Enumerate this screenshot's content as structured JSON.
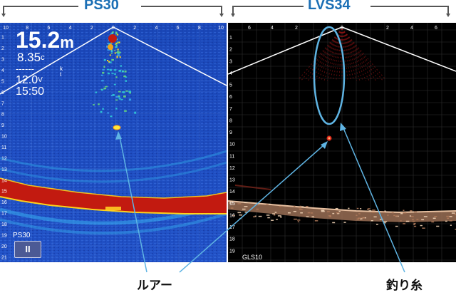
{
  "header": {
    "left_title": "PS30",
    "right_title": "LVS34"
  },
  "left_panel": {
    "depth_value": "15.2",
    "depth_unit": "m",
    "temperature": "8.35",
    "temperature_unit": "c",
    "speed_dashes": "------",
    "speed_unit_top": "k",
    "speed_unit_bottom": "t",
    "voltage_value": "12.0",
    "voltage_unit": "V",
    "time": "15:50",
    "model_label": "PS30",
    "pause_button_label": "II",
    "top_scale": [
      "10",
      "8",
      "6",
      "4",
      "2",
      "0",
      "2",
      "4",
      "6",
      "8",
      "10"
    ],
    "depth_scale": [
      "1",
      "2",
      "3",
      "4",
      "5",
      "6",
      "7",
      "8",
      "9",
      "10",
      "11",
      "12",
      "13",
      "14",
      "15",
      "16",
      "17",
      "18",
      "19",
      "20",
      "21"
    ],
    "colors": {
      "water": "#1f4ec0",
      "bottom": "#c21a10",
      "speckle": "#ffd21a"
    }
  },
  "right_panel": {
    "top_scale": [
      "6",
      "4",
      "2",
      "0",
      "2",
      "4",
      "6"
    ],
    "depth_scale": [
      "1",
      "2",
      "3",
      "4",
      "5",
      "6",
      "7",
      "8",
      "9",
      "10",
      "11",
      "12",
      "13",
      "14",
      "15",
      "16",
      "17",
      "18",
      "19"
    ],
    "transducer_label": "GLS10",
    "colors": {
      "background": "#000000",
      "echo": "#c81e1e",
      "bottom": "#d9ae8c"
    }
  },
  "annotations": {
    "lure_label": "ルアー",
    "fishing_line_label": "釣り糸",
    "callout_color": "#5fb4e3"
  }
}
